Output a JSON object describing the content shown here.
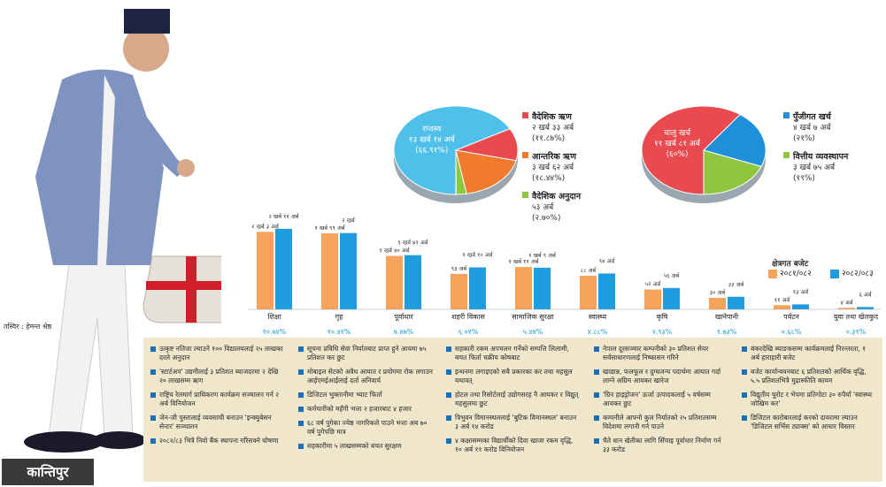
{
  "caption": "तस्विर : हेमन्त श्रेष्ठ",
  "logo": "कान्तिपुर",
  "colors": {
    "prev": "#f7a35c",
    "curr": "#1f9be0",
    "pie_blue": "#4fc0ea",
    "pie_red": "#e84a4f",
    "pie_orange": "#f17a2c",
    "pie_green": "#8ec640",
    "pie_dblue": "#1f8fd9"
  },
  "legend": {
    "title": "क्षेत्रगत बजेट",
    "prev": "२०८१/०८२",
    "curr": "२०८२/०८३"
  },
  "chart_data": [
    {
      "type": "pie",
      "slices": [
        {
          "label": "राजस्व",
          "value": "१३ खर्ब १४ अर्ब",
          "pct_text": "(६६.९१%)",
          "pct": 66.91,
          "color": "pie_blue"
        },
        {
          "label": "वैदेशिक ऋण",
          "value": "२ खर्ब ३३ अर्ब",
          "pct_text": "(११.८७%)",
          "pct": 11.87,
          "color": "pie_red"
        },
        {
          "label": "आन्तरिक ऋण",
          "value": "३ खर्ब ६२ अर्ब",
          "pct_text": "(१८.४४%)",
          "pct": 18.44,
          "color": "pie_orange"
        },
        {
          "label": "वैदेशिक अनुदान",
          "value": "५३ अर्ब",
          "pct_text": "(२.७०%)",
          "pct": 2.7,
          "color": "pie_green"
        }
      ]
    },
    {
      "type": "pie",
      "slices": [
        {
          "label": "चालु खर्च",
          "value": "११ खर्ब ८१ अर्ब",
          "pct_text": "(६०%)",
          "pct": 60,
          "color": "pie_red"
        },
        {
          "label": "पुँजीगत खर्च",
          "value": "४ खर्ब ७ अर्ब",
          "pct_text": "(२१%)",
          "pct": 21,
          "color": "pie_dblue"
        },
        {
          "label": "वित्तीय व्यवस्थापन",
          "value": "३ खर्ब ७५ अर्ब",
          "pct_text": "(१९%)",
          "pct": 19,
          "color": "pie_green"
        }
      ]
    },
    {
      "type": "bar",
      "title": "क्षेत्रगत बजेट",
      "series": [
        {
          "name": "२०८१/०८२",
          "color": "prev"
        },
        {
          "name": "२०८२/०८३",
          "color": "curr"
        }
      ],
      "categories": [
        {
          "name": "शिक्षा",
          "prev": 2.03,
          "curr": 2.11,
          "prev_label": "२ खर्ब ३ अर्ब",
          "curr_label": "२ खर्ब ११ अर्ब",
          "pct": "१०.७४%"
        },
        {
          "name": "गृह",
          "prev": 1.99,
          "curr": 2.0,
          "prev_label": "१ खर्ब ९९ अर्ब",
          "curr_label": "२ खर्ब",
          "pct": "१०.४१%"
        },
        {
          "name": "पूर्वाधार",
          "prev": 1.4,
          "curr": 1.42,
          "prev_label": "१ खर्ब ४० अर्ब",
          "curr_label": "१ खर्ब ४२ अर्ब",
          "pct": "७.४७%"
        },
        {
          "name": "शहरी विकास",
          "prev": 0.93,
          "curr": 1.1,
          "prev_label": "९३ अर्ब",
          "curr_label": "१ खर्ब १० अर्ब",
          "pct": "६.०१%"
        },
        {
          "name": "सामाजिक सुरक्षा",
          "prev": 1.11,
          "curr": 1.09,
          "prev_label": "१ खर्ब ११ अर्ब",
          "curr_label": "१ खर्ब ९ अर्ब",
          "pct": "५.४४%"
        },
        {
          "name": "स्वास्थ्य",
          "prev": 0.88,
          "curr": 0.94,
          "prev_label": "८८ अर्ब",
          "curr_label": "९४ अर्ब",
          "pct": "४.८८%"
        },
        {
          "name": "कृषि",
          "prev": 0.52,
          "curr": 0.56,
          "prev_label": "५२ अर्ब",
          "curr_label": "५६ अर्ब",
          "pct": "२.९३%"
        },
        {
          "name": "खानेपानी",
          "prev": 0.3,
          "curr": 0.33,
          "prev_label": "३० अर्ब",
          "curr_label": "३३ अर्ब",
          "pct": "१.७३%"
        },
        {
          "name": "पर्यटन",
          "prev": 0.11,
          "curr": 0.13,
          "prev_label": "११ अर्ब",
          "curr_label": "१३ अर्ब",
          "pct": "०.६८%"
        },
        {
          "name": "युवा तथा खेलकुद",
          "prev": 0.04,
          "curr": 0.06,
          "prev_label": "४ अर्ब",
          "curr_label": "६ अर्ब",
          "pct": "०.३१%"
        }
      ]
    }
  ],
  "columns": [
    [
      "उत्कृष्ट नतिजा ल्याउने १०० विद्यालयलाई २५ लाखका दरले अनुदान",
      "'स्टार्टअप' उद्यमीलाई ३ प्रतिशत ब्याजदरमा २ देखि २० लाखसम्म ऋण",
      "राष्ट्रिय रेलमार्ग प्राधिकरण कार्यक्रम सञ्चालन गर्न २ अर्ब विनियोजन",
      "जेन-जी पुस्तालाई व्यवसायी बनाउन 'इन्क्युबेसन सेन्टर' सञ्चालन",
      "२०८२/८३ भित्रै निवो बैंक स्थापना गरिसक्ने घोषणा"
    ],
    [
      "सूचना प्रविधि सेवा निर्यातबाट प्राप्त हुने आयमा ७५ प्रतिशत कर छुट",
      "मोबाइल सेटको अवैध आयात र प्रयोगमा रोक लगाउन आईएमईआईलाई दर्ता अनिवार्य",
      "डिजिटल भुक्तानीमा भ्याट फिर्ता",
      "कर्मचारीको महँगी भत्ता २ हजारबाट ४ हजार",
      "६८ वर्ष पुगेका ज्येष्ठ नागरिकले पाउने भत्ता अब ७० वर्ष पुगेपछि मात्र",
      "सहकारीमा ५ लाखसम्मको बचत सुरक्षण"
    ],
    [
      "सहकारी रकम अपचलन गर्नेको सम्पत्ति लिलामी, बचत फिर्ता चक्रीय कोषबाट",
      "इन्धनमा लगाइएको सबै प्रकारका कर तथा महसुल यथावत्",
      "होटल तथा रिसोर्टलाई उद्योगसरह नै आयकर र विद्युत् महसुलमा छुट",
      "त्रिभुवन विमानस्थललाई 'बुटिक विमानस्थल' बनाउन ३ अर्ब १४ करोड",
      "४ कक्षासम्मका विद्यार्थीको दिवा खाजा रकम वृद्धि, १० अर्ब ११ करोड विनियोजन"
    ],
    [
      "नेपाल दूरसञ्चार कम्पनीको ३० प्रतिशत सेयर सर्वसाधारणलाई निष्कासन गरिने",
      "खाद्यान्न, फलफूल र दुग्धजन्य पदार्थमा आयात गर्दा लाग्ने अग्रिम आयकर खारेज",
      "'ग्रिन हाइड्रोजन' ऊर्जा उत्पादकलाई ५ वर्षसम्म आयकर छुट",
      "कम्पनीले आफ्नो कुल निर्यातको २५ प्रतिशतसम्म विदेशमा लगानी गर्न पाउने",
      "चैते धान खेतीका लागि सिँचाइ पूर्वाधार निर्माण गर्न ३३ करोड"
    ],
    [
      "बंकरदेखि ब्याङकसम्म कार्यक्रमलाई निरन्तरता, १ अर्ब हाराहारी बजेट",
      "बजेट कार्यान्वयनबाट ६ प्रतिशतको आर्थिक वृद्धि, ५.५ प्रतिशतभित्रै मुद्रास्फीति कायम",
      "विद्युतीय चुरोट र भेपमा प्रतिगोटा ३० रुपैयाँ 'स्वास्थ्य जोखिम कर'",
      "डिजिटल कारोबारलाई करको दायरामा ल्याउन 'डिजिटल सर्भिस ट्याक्स' को आधार विस्तार"
    ]
  ]
}
